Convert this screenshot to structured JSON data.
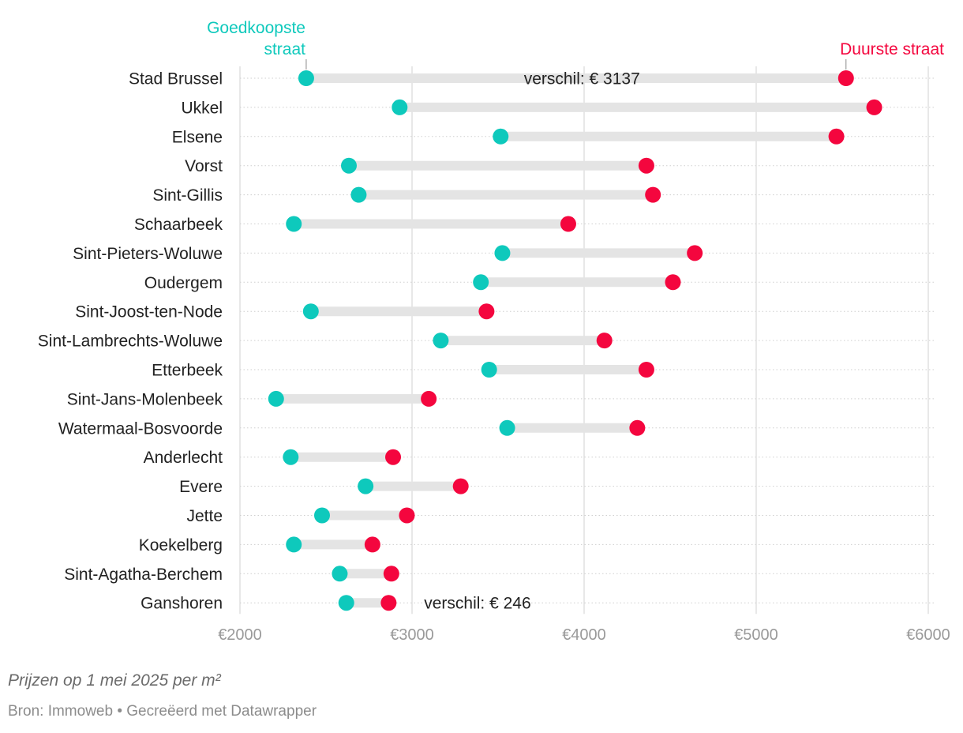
{
  "chart_data": {
    "type": "dumbbell",
    "title": "",
    "xlabel": "",
    "ylabel": "",
    "xlim": [
      2000,
      6000
    ],
    "x_ticks": [
      2000,
      3000,
      4000,
      5000,
      6000
    ],
    "x_tick_labels": [
      "€2000",
      "€3000",
      "€4000",
      "€5000",
      "€6000"
    ],
    "series": [
      {
        "name": "Goedkoopste straat",
        "color": "#0ec9bc"
      },
      {
        "name": "Duurste straat",
        "color": "#f4063e"
      }
    ],
    "legend_labels": {
      "low_line1": "Goedkoopste",
      "low_line2": "straat",
      "high": "Duurste straat"
    },
    "categories": [
      "Stad Brussel",
      "Ukkel",
      "Elsene",
      "Vorst",
      "Sint-Gillis",
      "Schaarbeek",
      "Sint-Pieters-Woluwe",
      "Oudergem",
      "Sint-Joost-ten-Node",
      "Sint-Lambrechts-Woluwe",
      "Etterbeek",
      "Sint-Jans-Molenbeek",
      "Watermaal-Bosvoorde",
      "Anderlecht",
      "Evere",
      "Jette",
      "Koekelberg",
      "Sint-Agatha-Berchem",
      "Ganshoren"
    ],
    "low": [
      2385,
      2928,
      3515,
      2633,
      2690,
      2313,
      3525,
      3400,
      2412,
      3167,
      3448,
      2210,
      3553,
      2295,
      2730,
      2477,
      2313,
      2580,
      2618
    ],
    "high": [
      5522,
      5686,
      5466,
      4362,
      4400,
      3908,
      4643,
      4516,
      3433,
      4118,
      4362,
      3097,
      4309,
      2890,
      3283,
      2970,
      2770,
      2880,
      2864
    ],
    "annotations": [
      {
        "category": "Stad Brussel",
        "text": "verschil: € 3137",
        "x": 3650
      },
      {
        "category": "Ganshoren",
        "text": "verschil: € 246",
        "x": 3070
      }
    ]
  },
  "footer": {
    "note": "Prijzen op 1 mei 2025 per m²",
    "source": "Bron: Immoweb • Gecreëerd met Datawrapper"
  }
}
